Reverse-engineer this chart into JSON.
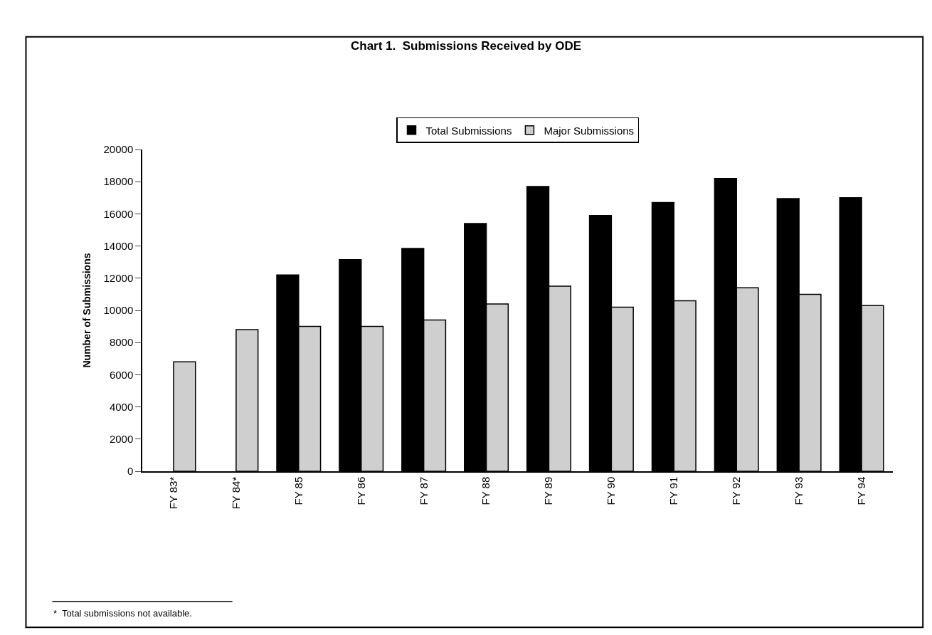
{
  "chart_data": {
    "type": "bar",
    "title": "Chart 1.  Submissions Received by ODE",
    "ylabel": "Number of Submissions",
    "categories": [
      "FY 83*",
      "FY 84*",
      "FY 85",
      "FY 86",
      "FY 87",
      "FY 88",
      "FY 89",
      "FY 90",
      "FY 91",
      "FY 92",
      "FY 93",
      "FY 94"
    ],
    "series": [
      {
        "name": "Total Submissions",
        "color": "#000000",
        "values": [
          null,
          null,
          12200,
          13150,
          13850,
          15400,
          17700,
          15900,
          16700,
          18200,
          16950,
          17000
        ]
      },
      {
        "name": "Major Submissions",
        "color": "#cfcfcf",
        "values": [
          6800,
          8800,
          9000,
          9000,
          9400,
          10400,
          11500,
          10200,
          10600,
          11400,
          11000,
          10300
        ]
      }
    ],
    "ylim": [
      0,
      20000
    ],
    "yticks": [
      0,
      2000,
      4000,
      6000,
      8000,
      10000,
      12000,
      14000,
      16000,
      18000,
      20000
    ],
    "legend": "top",
    "annotations": [
      "*  Total submissions not available."
    ]
  }
}
